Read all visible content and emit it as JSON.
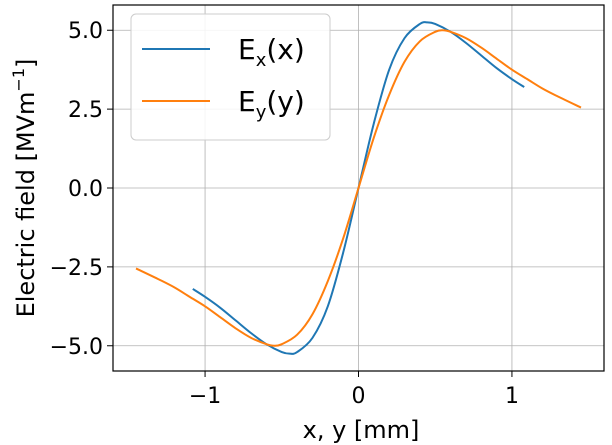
{
  "chart_data": {
    "type": "line",
    "title": "",
    "xlabel": "x, y [mm]",
    "ylabel_base": "Electric field [MVm",
    "ylabel_sup": "−1",
    "ylabel_end": "]",
    "xlim": [
      -1.6,
      1.6
    ],
    "ylim": [
      -5.8,
      5.8
    ],
    "xticks": [
      -1,
      0,
      1
    ],
    "xtick_labels": [
      "−1",
      "0",
      "1"
    ],
    "yticks": [
      -5.0,
      -2.5,
      0.0,
      2.5,
      5.0
    ],
    "ytick_labels": [
      "−5.0",
      "−2.5",
      "0.0",
      "2.5",
      "5.0"
    ],
    "grid": true,
    "legend_position": "top-left",
    "series": [
      {
        "name_base": "E",
        "name_sub": "x",
        "name_arg": "(x)",
        "color": "#1f77b4",
        "x": [
          -1.08,
          -1.0,
          -0.9,
          -0.8,
          -0.7,
          -0.6,
          -0.5,
          -0.45,
          -0.4,
          -0.3,
          -0.2,
          -0.1,
          0.0,
          0.1,
          0.2,
          0.3,
          0.4,
          0.45,
          0.5,
          0.6,
          0.7,
          0.8,
          0.9,
          1.0,
          1.08
        ],
        "y": [
          -3.2,
          -3.45,
          -3.8,
          -4.2,
          -4.6,
          -4.95,
          -5.2,
          -5.25,
          -5.2,
          -4.75,
          -3.75,
          -2.05,
          0.0,
          2.05,
          3.75,
          4.75,
          5.2,
          5.25,
          5.2,
          4.95,
          4.6,
          4.2,
          3.8,
          3.45,
          3.2
        ]
      },
      {
        "name_base": "E",
        "name_sub": "y",
        "name_arg": "(y)",
        "color": "#ff7f0e",
        "x": [
          -1.45,
          -1.3,
          -1.2,
          -1.1,
          -1.0,
          -0.9,
          -0.8,
          -0.7,
          -0.6,
          -0.55,
          -0.5,
          -0.4,
          -0.3,
          -0.2,
          -0.1,
          0.0,
          0.1,
          0.2,
          0.3,
          0.4,
          0.5,
          0.55,
          0.6,
          0.7,
          0.8,
          0.9,
          1.0,
          1.1,
          1.2,
          1.3,
          1.45
        ],
        "y": [
          -2.55,
          -2.9,
          -3.15,
          -3.45,
          -3.75,
          -4.1,
          -4.45,
          -4.75,
          -4.95,
          -5.0,
          -4.95,
          -4.65,
          -4.0,
          -2.95,
          -1.6,
          0.0,
          1.6,
          2.95,
          4.0,
          4.65,
          4.95,
          5.0,
          4.95,
          4.75,
          4.45,
          4.1,
          3.75,
          3.45,
          3.15,
          2.9,
          2.55
        ]
      }
    ]
  }
}
